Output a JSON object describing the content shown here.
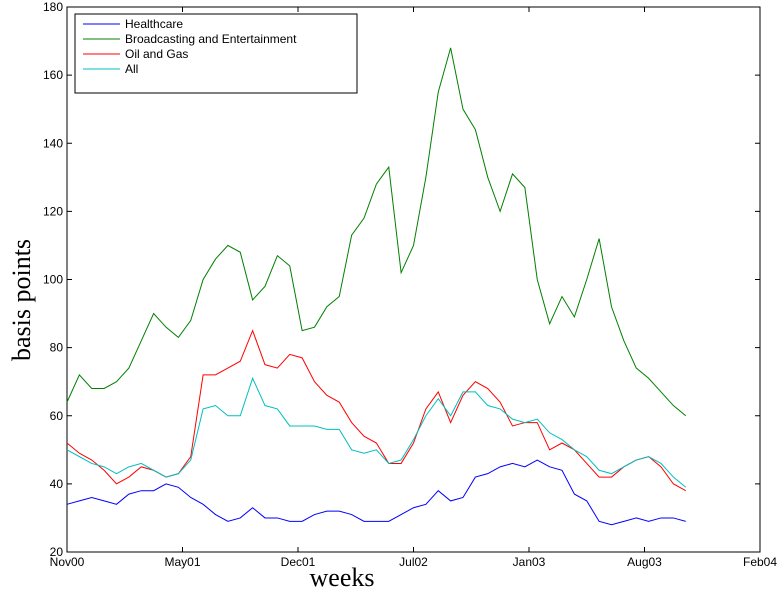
{
  "chart_data": {
    "type": "line",
    "xlabel": "weeks",
    "ylabel": "basis points",
    "x": [
      0,
      3,
      6,
      9,
      12,
      15,
      18,
      21,
      24,
      27,
      30,
      33,
      36,
      39,
      42,
      45,
      48,
      51,
      54,
      57,
      60,
      63,
      66,
      69,
      72,
      75,
      78,
      81,
      84,
      87,
      90,
      93,
      96,
      99,
      102,
      105,
      108,
      111,
      114,
      117,
      120,
      123,
      126,
      129,
      132,
      135,
      138,
      141,
      144,
      147,
      150
    ],
    "xlim": [
      0,
      168
    ],
    "xticks": [
      {
        "value": 0,
        "label": "Nov00"
      },
      {
        "value": 28,
        "label": "May01"
      },
      {
        "value": 56,
        "label": "Dec01"
      },
      {
        "value": 84,
        "label": "Jul02"
      },
      {
        "value": 112,
        "label": "Jan03"
      },
      {
        "value": 140,
        "label": "Aug03"
      },
      {
        "value": 168,
        "label": "Feb04"
      }
    ],
    "ylim": [
      20,
      180
    ],
    "yticks": [
      20,
      40,
      60,
      80,
      100,
      120,
      140,
      160,
      180
    ],
    "grid": false,
    "legend": "upper left",
    "series": [
      {
        "name": "Healthcare",
        "color": "#0000ff",
        "values": [
          34,
          35,
          36,
          35,
          34,
          37,
          38,
          38,
          40,
          39,
          36,
          34,
          31,
          29,
          30,
          33,
          30,
          30,
          29,
          29,
          31,
          32,
          32,
          31,
          29,
          29,
          29,
          31,
          33,
          34,
          38,
          35,
          36,
          42,
          43,
          45,
          46,
          45,
          47,
          45,
          44,
          37,
          35,
          29,
          28,
          29,
          30,
          29,
          30,
          30,
          29
        ]
      },
      {
        "name": "Broadcasting and Entertainment",
        "color": "#008000",
        "values": [
          64,
          72,
          68,
          68,
          70,
          74,
          82,
          90,
          86,
          83,
          88,
          100,
          106,
          110,
          108,
          94,
          98,
          107,
          104,
          85,
          86,
          92,
          95,
          113,
          118,
          128,
          133,
          102,
          110,
          130,
          155,
          168,
          150,
          144,
          130,
          120,
          131,
          127,
          100,
          87,
          95,
          89,
          100,
          112,
          92,
          82,
          74,
          71,
          67,
          63,
          60
        ]
      },
      {
        "name": "Oil and Gas",
        "color": "#ff0000",
        "values": [
          52,
          49,
          47,
          44,
          40,
          42,
          45,
          44,
          42,
          43,
          48,
          72,
          72,
          74,
          76,
          85,
          75,
          74,
          78,
          77,
          70,
          66,
          64,
          58,
          54,
          52,
          46,
          46,
          52,
          62,
          67,
          58,
          66,
          70,
          68,
          64,
          57,
          58,
          58,
          50,
          52,
          50,
          46,
          42,
          42,
          45,
          47,
          48,
          45,
          40,
          38
        ]
      },
      {
        "name": "All",
        "color": "#00bfbf",
        "values": [
          50,
          48,
          46,
          45,
          43,
          45,
          46,
          44,
          42,
          43,
          47,
          62,
          63,
          60,
          60,
          71,
          63,
          62,
          57,
          57,
          57,
          56,
          56,
          50,
          49,
          50,
          46,
          47,
          53,
          60,
          65,
          60,
          67,
          67,
          63,
          62,
          59,
          58,
          59,
          55,
          53,
          50,
          48,
          44,
          43,
          45,
          47,
          48,
          46,
          42,
          39
        ]
      }
    ]
  }
}
